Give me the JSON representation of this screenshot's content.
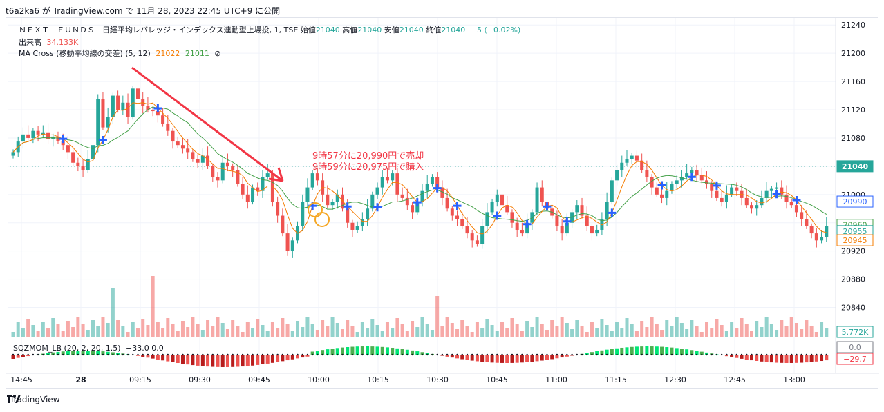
{
  "caption": "t6a2ka6 が TradingView.com で 11月 28, 2023 22:45 UTC+9 に公開",
  "header": {
    "symbol": "ＮＥＸＴ　ＦＵＮＤＳ　日経平均レバレッジ・インデックス連動型上場投, 1, TSE",
    "ohlc": [
      {
        "label": "始値",
        "value": "21040"
      },
      {
        "label": "高値",
        "value": "21040"
      },
      {
        "label": "安値",
        "value": "21040"
      },
      {
        "label": "終値",
        "value": "21040"
      }
    ],
    "change": "−5 (−0.02%)",
    "volume_label": "出来高",
    "volume_value": "34.133K",
    "ma_label": "MA Cross (移動平均線の交差) (5, 12)",
    "ma_fast_value": "21022",
    "ma_slow_value": "21011",
    "ma_icon": "⊘",
    "sqz_label": "SQZMOM_LB (20, 2, 20, 1.5)",
    "sqz_values": "−33.0  0.0"
  },
  "annotation": {
    "line1": "9時57分に20,990円で売却",
    "line2": "9時59分に20,975円で購入"
  },
  "footer": {
    "brand": "TradingView"
  },
  "colors": {
    "up": "#26a69a",
    "down": "#ef5350",
    "ma_fast": "#f57c00",
    "ma_slow": "#43a047",
    "annotation": "#f23645",
    "cross_marker": "#2962ff",
    "last_price": "#26a69a"
  },
  "chart_data": {
    "type": "candlestick",
    "price_axis": {
      "ticks": [
        21240,
        21200,
        21160,
        21120,
        21080,
        21040,
        21000,
        20960,
        20920,
        20880,
        20840
      ],
      "range": [
        20820,
        21250
      ]
    },
    "time_axis": {
      "labels": [
        "14:45",
        "28",
        "09:15",
        "09:30",
        "09:45",
        "10:00",
        "10:15",
        "10:30",
        "10:45",
        "11:00",
        "11:15",
        "12:30",
        "12:45",
        "13:00"
      ]
    },
    "price_labels": [
      {
        "value": "21040",
        "color": "#26a69a",
        "filled": true
      },
      {
        "value": "20990",
        "color": "#2962ff",
        "filled": false
      },
      {
        "value": "20960",
        "color": "#43a047",
        "filled": false
      },
      {
        "value": "20955",
        "color": "#26a69a",
        "filled": false
      },
      {
        "value": "20945",
        "color": "#f57c00",
        "filled": false
      },
      {
        "value": "5.772K",
        "color": "#26a69a",
        "filled": false
      },
      {
        "value": "0.0",
        "color": "#787b86",
        "filled": false
      },
      {
        "value": "−29.7",
        "color": "#f23645",
        "filled": false
      }
    ],
    "closes": [
      21060,
      21075,
      21085,
      21080,
      21090,
      21085,
      21088,
      21078,
      21082,
      21076,
      21070,
      21060,
      21045,
      21040,
      21035,
      21050,
      21070,
      21135,
      21095,
      21110,
      21140,
      21120,
      21130,
      21110,
      21150,
      21135,
      21125,
      21120,
      21118,
      21112,
      21100,
      21090,
      21075,
      21070,
      21065,
      21060,
      21050,
      21045,
      21055,
      21040,
      21025,
      21020,
      21045,
      21040,
      21035,
      21015,
      21000,
      20990,
      21010,
      21005,
      21025,
      21030,
      20990,
      20970,
      20945,
      20920,
      20935,
      20955,
      20990,
      21010,
      21030,
      21020,
      21000,
      20985,
      20990,
      21000,
      20980,
      20960,
      20950,
      20955,
      20965,
      20980,
      21000,
      21010,
      21025,
      21020,
      21030,
      21000,
      20995,
      20985,
      20975,
      20990,
      21005,
      21015,
      21025,
      21010,
      20995,
      20980,
      20970,
      20965,
      20955,
      20945,
      20935,
      20930,
      20955,
      20975,
      20990,
      21000,
      20985,
      20975,
      20960,
      20950,
      20945,
      20960,
      20975,
      21010,
      20990,
      20980,
      20970,
      20955,
      20945,
      20960,
      20975,
      20985,
      20970,
      20955,
      20945,
      20950,
      20965,
      20990,
      21020,
      21035,
      21045,
      21050,
      21055,
      21048,
      21035,
      21025,
      21010,
      21000,
      20995,
      21005,
      21015,
      21020,
      21025,
      21030,
      21035,
      21028,
      21020,
      21015,
      21005,
      20995,
      20990,
      21000,
      21010,
      21005,
      20995,
      20985,
      20980,
      20985,
      20995,
      21005,
      21008,
      21010,
      21000,
      20990,
      20985,
      20975,
      20965,
      20955,
      20945,
      20935,
      20940,
      20955
    ],
    "ma_fast": [],
    "ma_slow": [],
    "volume_last": "5.772K",
    "momentum_last": -29.7
  }
}
